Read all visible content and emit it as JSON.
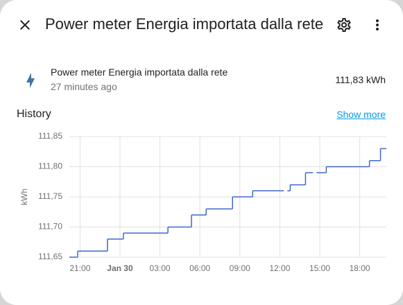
{
  "header": {
    "title": "Power meter Energia importata dalla rete"
  },
  "entity": {
    "name": "Power meter Energia importata dalla rete",
    "last_changed": "27 minutes ago",
    "state": "111,83 kWh"
  },
  "history": {
    "title": "History",
    "link": "Show more"
  },
  "chart_data": {
    "type": "line",
    "step": true,
    "y_label": "kWh",
    "x": [
      -3.8,
      -3.18,
      -0.94,
      0.26,
      3.6,
      5.37,
      6.47,
      8.45,
      9.96,
      12.3,
      12.57,
      12.78,
      13.93,
      14.5,
      14.76,
      15.49,
      18.73,
      19.56
    ],
    "series": [
      {
        "color": "#3e67c8",
        "values": [
          111.65,
          111.66,
          111.68,
          111.69,
          111.7,
          111.72,
          111.73,
          111.75,
          111.76,
          null,
          111.76,
          111.77,
          111.79,
          null,
          111.79,
          111.8,
          111.81,
          111.83
        ]
      }
    ],
    "xlim": [
      -3.8,
      20
    ],
    "xticks": [
      {
        "value": -3,
        "label": "21:00"
      },
      {
        "value": 0,
        "label": "Jan 30"
      },
      {
        "value": 3,
        "label": "03:00"
      },
      {
        "value": 6,
        "label": "06:00"
      },
      {
        "value": 9,
        "label": "09:00"
      },
      {
        "value": 12,
        "label": "12:00"
      },
      {
        "value": 15,
        "label": "15:00"
      },
      {
        "value": 18,
        "label": "18:00"
      }
    ],
    "ylim": [
      111.65,
      111.85
    ],
    "yticks": [
      {
        "value": 111.65,
        "label": "111,65"
      },
      {
        "value": 111.7,
        "label": "111,70"
      },
      {
        "value": 111.75,
        "label": "111,75"
      },
      {
        "value": 111.8,
        "label": "111,80"
      },
      {
        "value": 111.85,
        "label": "111,85"
      }
    ],
    "grid": true
  }
}
